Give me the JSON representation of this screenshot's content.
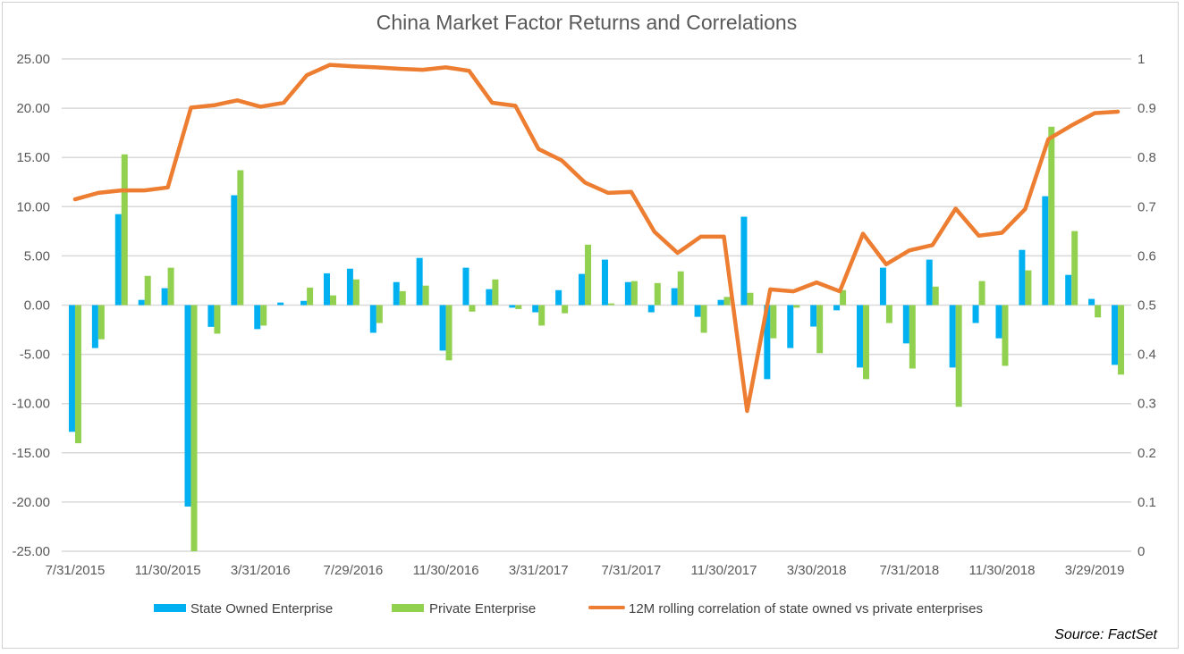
{
  "chart_data": {
    "type": "bar",
    "title": "China Market Factor Returns and Correlations",
    "source": "Source: FactSet",
    "x_tick_labels": [
      "7/31/2015",
      "11/30/2015",
      "3/31/2016",
      "7/29/2016",
      "11/30/2016",
      "3/31/2017",
      "7/31/2017",
      "11/30/2017",
      "3/30/2018",
      "7/31/2018",
      "11/30/2018",
      "3/29/2019"
    ],
    "x_tick_every": 4,
    "y_left": {
      "lim": [
        -25,
        25
      ],
      "ticks": [
        "-25.00",
        "-20.00",
        "-15.00",
        "-10.00",
        "-5.00",
        "0.00",
        "5.00",
        "10.00",
        "15.00",
        "20.00",
        "25.00"
      ]
    },
    "y_right": {
      "lim": [
        0,
        1
      ],
      "ticks": [
        "0",
        "0.1",
        "0.2",
        "0.3",
        "0.4",
        "0.5",
        "0.6",
        "0.7",
        "0.8",
        "0.9",
        "1"
      ]
    },
    "grid": true,
    "legend_position": "bottom",
    "colors": {
      "soe": "#00b0f0",
      "private": "#92d050",
      "correlation": "#ed7d31",
      "grid": "#d9d9d9"
    },
    "series": [
      {
        "name": "State Owned Enterprise",
        "type": "bar",
        "axis": "left",
        "values": [
          -12.87,
          -4.36,
          9.24,
          0.53,
          1.72,
          -20.46,
          -2.21,
          11.16,
          -2.44,
          0.26,
          0.43,
          3.23,
          3.7,
          -2.81,
          2.34,
          4.79,
          -4.62,
          3.8,
          1.62,
          -0.26,
          -0.73,
          1.52,
          3.17,
          4.62,
          2.34,
          -0.73,
          1.72,
          -1.19,
          0.53,
          8.98,
          -7.52,
          -4.36,
          -2.18,
          -0.53,
          -6.34,
          3.8,
          -3.89,
          4.62,
          -6.34,
          -1.82,
          -3.37,
          5.61,
          11.06,
          3.07,
          0.63,
          -6.07
        ]
      },
      {
        "name": "Private Enterprise",
        "type": "bar",
        "axis": "left",
        "values": [
          -14.03,
          -3.47,
          15.31,
          2.97,
          3.8,
          -25.4,
          -2.9,
          13.7,
          -2.08,
          0.0,
          1.78,
          0.99,
          2.61,
          -1.82,
          1.42,
          1.98,
          -5.61,
          -0.66,
          2.61,
          -0.4,
          -2.08,
          -0.83,
          6.14,
          0.17,
          2.44,
          2.24,
          3.43,
          -2.81,
          0.83,
          1.25,
          -3.37,
          -0.26,
          -4.88,
          1.52,
          -7.52,
          -1.82,
          -6.44,
          1.88,
          -10.33,
          2.44,
          -6.17,
          3.53,
          18.12,
          7.52,
          -1.25,
          -7.06
        ]
      },
      {
        "name": "12M rolling correlation of state owned vs private enterprises",
        "type": "line",
        "axis": "right",
        "values": [
          0.715,
          0.728,
          0.733,
          0.733,
          0.739,
          0.901,
          0.906,
          0.916,
          0.903,
          0.911,
          0.967,
          0.988,
          0.985,
          0.983,
          0.98,
          0.978,
          0.983,
          0.976,
          0.911,
          0.905,
          0.817,
          0.794,
          0.749,
          0.728,
          0.73,
          0.649,
          0.606,
          0.639,
          0.639,
          0.285,
          0.532,
          0.528,
          0.546,
          0.528,
          0.645,
          0.583,
          0.611,
          0.622,
          0.696,
          0.641,
          0.647,
          0.695,
          0.837,
          0.865,
          0.89,
          0.893
        ]
      }
    ]
  }
}
